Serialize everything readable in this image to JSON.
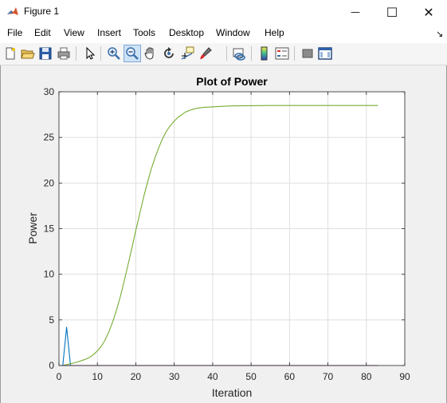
{
  "window": {
    "title": "Figure 1",
    "minimize_glyph": "—",
    "maximize_glyph": "☐",
    "close_glyph": "✕"
  },
  "menubar": {
    "items": [
      "File",
      "Edit",
      "View",
      "Insert",
      "Tools",
      "Desktop",
      "Window",
      "Help"
    ],
    "overflow_glyph": "↘"
  },
  "toolbar": {
    "buttons": [
      {
        "icon": "new-figure-icon"
      },
      {
        "icon": "open-file-icon"
      },
      {
        "icon": "save-icon"
      },
      {
        "icon": "print-icon"
      },
      {
        "icon": "edit-plot-arrow-icon"
      },
      {
        "icon": "zoom-in-icon"
      },
      {
        "icon": "zoom-out-icon",
        "active": true
      },
      {
        "icon": "pan-hand-icon"
      },
      {
        "icon": "rotate-3d-icon"
      },
      {
        "icon": "data-cursor-icon"
      },
      {
        "icon": "brush-icon"
      },
      {
        "icon": "link-plot-icon"
      },
      {
        "icon": "colorbar-icon"
      },
      {
        "icon": "legend-icon"
      },
      {
        "icon": "hide-plot-tools-icon"
      },
      {
        "icon": "show-plot-tools-icon"
      }
    ]
  },
  "chart_data": {
    "type": "line",
    "title": "Plot of Power",
    "xlabel": "Iteration",
    "ylabel": "Power",
    "xlim": [
      0,
      90
    ],
    "ylim": [
      0,
      30
    ],
    "xticks": [
      0,
      10,
      20,
      30,
      40,
      50,
      60,
      70,
      80,
      90
    ],
    "yticks": [
      0,
      5,
      10,
      15,
      20,
      25,
      30
    ],
    "grid": true,
    "colors": {
      "blue": "#0072bd",
      "green": "#77ac30",
      "red": "#d95319",
      "purple": "#7e2f8e"
    },
    "series": [
      {
        "color": "#0072bd",
        "x": [
          1,
          2,
          3,
          4,
          5,
          10,
          20,
          40,
          60,
          83
        ],
        "y": [
          0,
          4.2,
          0,
          0,
          0,
          0,
          0,
          0,
          0,
          0
        ]
      },
      {
        "color": "#77ac30",
        "x": [
          1,
          2,
          3,
          4,
          5,
          6,
          7,
          8,
          9,
          10,
          11,
          12,
          13,
          14,
          15,
          16,
          17,
          18,
          19,
          20,
          21,
          22,
          23,
          24,
          25,
          26,
          27,
          28,
          29,
          30,
          31,
          32,
          33,
          34,
          35,
          36,
          38,
          40,
          42,
          45,
          50,
          55,
          60,
          65,
          70,
          75,
          80,
          83
        ],
        "y": [
          0,
          0.1,
          0.2,
          0.3,
          0.4,
          0.55,
          0.7,
          0.9,
          1.2,
          1.6,
          2.1,
          2.8,
          3.7,
          4.8,
          6.1,
          7.6,
          9.3,
          11.1,
          12.9,
          14.8,
          16.6,
          18.4,
          20.0,
          21.5,
          22.8,
          23.9,
          24.9,
          25.7,
          26.3,
          26.8,
          27.2,
          27.5,
          27.8,
          27.95,
          28.1,
          28.2,
          28.3,
          28.35,
          28.4,
          28.45,
          28.48,
          28.5,
          28.5,
          28.5,
          28.5,
          28.5,
          28.5,
          28.5
        ]
      },
      {
        "color": "#d95319",
        "x": [
          1,
          83
        ],
        "y": [
          0,
          0
        ]
      },
      {
        "color": "#7e2f8e",
        "x": [
          1,
          83
        ],
        "y": [
          0,
          0
        ]
      }
    ]
  }
}
